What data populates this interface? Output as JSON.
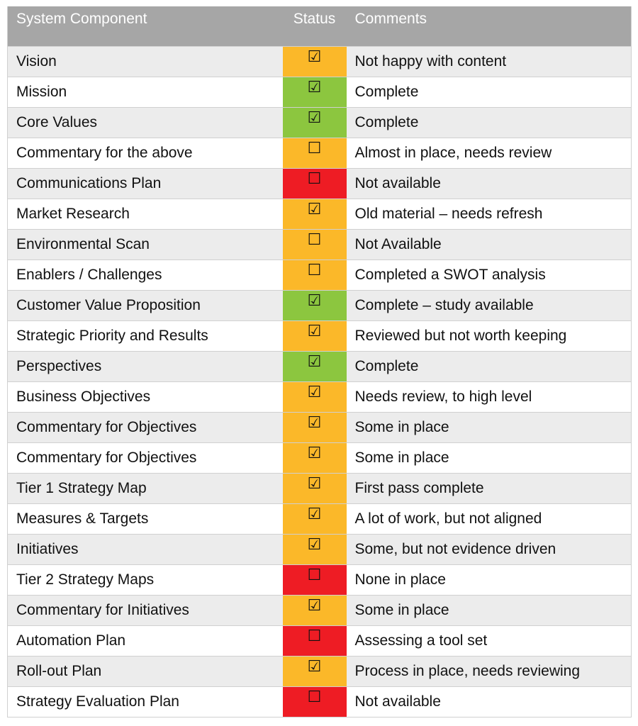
{
  "table": {
    "header": [
      "System Component",
      "Status",
      "Comments"
    ],
    "rows": [
      {
        "component": "Vision",
        "status": "☑",
        "color": "#fbb829",
        "comment": "Not happy with content"
      },
      {
        "component": "Mission",
        "status": "☑",
        "color": "#8cc63f",
        "comment": "Complete"
      },
      {
        "component": "Core Values",
        "status": "☑",
        "color": "#8cc63f",
        "comment": "Complete"
      },
      {
        "component": "Commentary for the above",
        "status": "☐",
        "color": "#fbb829",
        "comment": "Almost in place, needs review"
      },
      {
        "component": "Communications Plan",
        "status": "☐",
        "color": "#ee1c24",
        "comment": "Not available"
      },
      {
        "component": "Market Research",
        "status": "☑",
        "color": "#fbb829",
        "comment": "Old material – needs refresh"
      },
      {
        "component": "Environmental Scan",
        "status": "☐",
        "color": "#fbb829",
        "comment": "Not Available"
      },
      {
        "component": "Enablers / Challenges",
        "status": "☐",
        "color": "#fbb829",
        "comment": "Completed a SWOT analysis"
      },
      {
        "component": "Customer Value Proposition",
        "status": "☑",
        "color": "#8cc63f",
        "comment": "Complete – study available"
      },
      {
        "component": "Strategic Priority and Results",
        "status": "☑",
        "color": "#fbb829",
        "comment": "Reviewed but not worth keeping"
      },
      {
        "component": "Perspectives",
        "status": "☑",
        "color": "#8cc63f",
        "comment": "Complete"
      },
      {
        "component": "Business Objectives",
        "status": "☑",
        "color": "#fbb829",
        "comment": "Needs review, to high level"
      },
      {
        "component": "Commentary for Objectives",
        "status": "☑",
        "color": "#fbb829",
        "comment": "Some in place"
      },
      {
        "component": "Commentary for Objectives",
        "status": "☑",
        "color": "#fbb829",
        "comment": "Some in place"
      },
      {
        "component": "Tier 1 Strategy Map",
        "status": "☑",
        "color": "#fbb829",
        "comment": "First pass complete"
      },
      {
        "component": "Measures & Targets",
        "status": "☑",
        "color": "#fbb829",
        "comment": "A lot of work, but not aligned"
      },
      {
        "component": "Initiatives",
        "status": "☑",
        "color": "#fbb829",
        "comment": "Some, but not evidence driven"
      },
      {
        "component": "Tier 2 Strategy Maps",
        "status": "☐",
        "color": "#ee1c24",
        "comment": "None in place"
      },
      {
        "component": "Commentary for Initiatives",
        "status": "☑",
        "color": "#fbb829",
        "comment": "Some in place"
      },
      {
        "component": "Automation Plan",
        "status": "☐",
        "color": "#ee1c24",
        "comment": "Assessing a tool set"
      },
      {
        "component": "Roll-out Plan",
        "status": "☑",
        "color": "#fbb829",
        "comment": "Process in place, needs reviewing"
      },
      {
        "component": "Strategy Evaluation Plan",
        "status": "☐",
        "color": "#ee1c24",
        "comment": "Not available"
      }
    ]
  }
}
